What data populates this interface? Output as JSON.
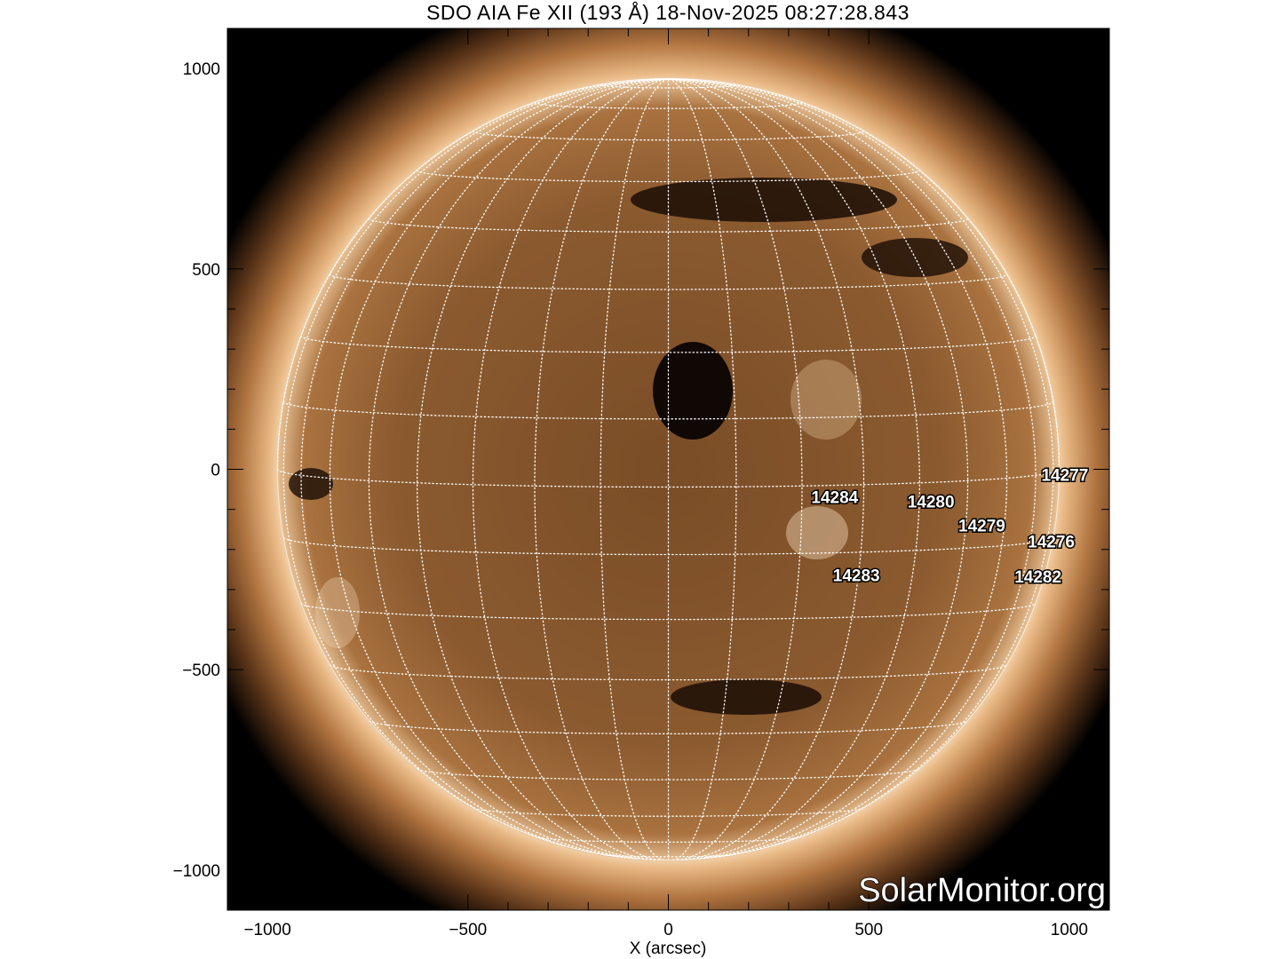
{
  "title": "SDO AIA Fe XII (193 Å) 18-Nov-2025 08:27:28.843",
  "x_axis": {
    "label": "X (arcsec)",
    "range": [
      -1100,
      1100
    ],
    "ticks": [
      -1000,
      -500,
      0,
      500,
      1000
    ],
    "tick_labels": [
      "−1000",
      "−500",
      "0",
      "500",
      "1000"
    ]
  },
  "y_axis": {
    "range": [
      -1100,
      1100
    ],
    "ticks": [
      -1000,
      -500,
      0,
      500,
      1000
    ],
    "tick_labels": [
      "−1000",
      "−500",
      "0",
      "500",
      "1000"
    ]
  },
  "solar_radius_arcsec": 975,
  "grid_spacing_deg": 10,
  "colors": {
    "disk": "#8a5a2e",
    "corona": "#f3d3a8",
    "background": "#000000",
    "grid": "#ffffff"
  },
  "active_regions": [
    {
      "label": "14277",
      "x": 989,
      "y": -13
    },
    {
      "label": "14284",
      "x": 415,
      "y": -69
    },
    {
      "label": "14280",
      "x": 655,
      "y": -80
    },
    {
      "label": "14279",
      "x": 782,
      "y": -140
    },
    {
      "label": "14276",
      "x": 955,
      "y": -180
    },
    {
      "label": "14283",
      "x": 469,
      "y": -264
    },
    {
      "label": "14282",
      "x": 922,
      "y": -267
    }
  ],
  "watermark": "SolarMonitor.org"
}
